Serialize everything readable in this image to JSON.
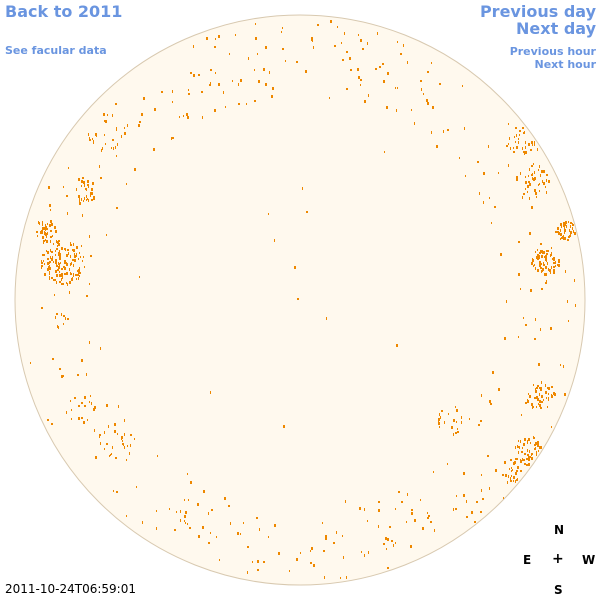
{
  "nav": {
    "back_label": "Back to 2011",
    "facular_label": "See facular data",
    "prev_day_label": "Previous day",
    "next_day_label": "Next day",
    "prev_hour_label": "Previous hour",
    "next_hour_label": "Next hour"
  },
  "compass": {
    "north": "N",
    "east": "E",
    "center": "+",
    "west": "W",
    "south": "S"
  },
  "timestamp": "2011-10-24T06:59:01",
  "colors": {
    "link": "#6a95e0",
    "disk_fill": "#fff9ee",
    "disk_edge": "#d8c9b0",
    "facula": "#ee8800"
  }
}
